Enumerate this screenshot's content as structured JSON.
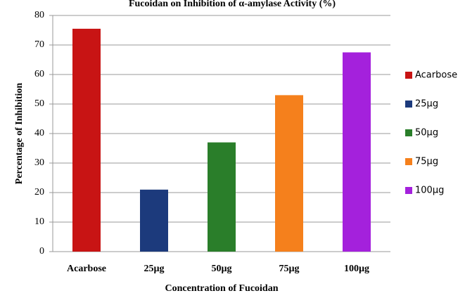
{
  "chart_data": {
    "type": "bar",
    "title": "Fucoidan  on Inhibition  of α-amylase  Activity  (%)",
    "x_label": "Concentration  of Fucoidan",
    "y_label": "Percentage of Inhibition",
    "categories": [
      "Acarbose",
      "25µg",
      "50µg",
      "75µg",
      "100µg"
    ],
    "values": [
      75.5,
      21,
      37,
      53,
      67.5
    ],
    "colors": [
      "#c81414",
      "#1c3a7c",
      "#2a7e2a",
      "#f5801c",
      "#a421dc"
    ],
    "ylim": [
      0,
      80
    ],
    "yticks": [
      0,
      10,
      20,
      30,
      40,
      50,
      60,
      70,
      80
    ],
    "grid": true,
    "legend": "right"
  }
}
